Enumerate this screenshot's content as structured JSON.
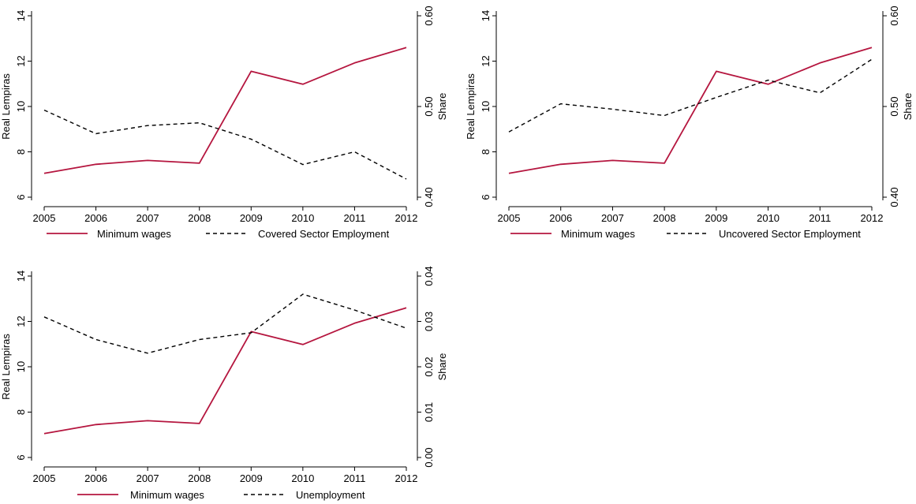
{
  "chart_data": [
    {
      "type": "line",
      "x": [
        2005,
        2006,
        2007,
        2008,
        2009,
        2010,
        2011,
        2012
      ],
      "ylabel": "Real Lempiras",
      "y2label": "Share",
      "ylim": [
        6,
        14
      ],
      "yticks": [
        6,
        8,
        10,
        12,
        14
      ],
      "y2lim": [
        0.4,
        0.6
      ],
      "y2ticks": [
        "0.40",
        "0.50",
        "0.60"
      ],
      "grid": false,
      "legend_placement": "bottom",
      "series": [
        {
          "name": "Minimum wages",
          "axis": "left",
          "style": "solid",
          "color": "#b5163f",
          "values": [
            7.05,
            7.45,
            7.62,
            7.5,
            11.55,
            10.98,
            11.92,
            12.6
          ]
        },
        {
          "name": "Covered Sector Employment",
          "axis": "right",
          "style": "dashed",
          "color": "#000000",
          "values": [
            0.496,
            0.47,
            0.479,
            0.482,
            0.464,
            0.436,
            0.45,
            0.42
          ]
        }
      ]
    },
    {
      "type": "line",
      "x": [
        2005,
        2006,
        2007,
        2008,
        2009,
        2010,
        2011,
        2012
      ],
      "ylabel": "Real Lempiras",
      "y2label": "Share",
      "ylim": [
        6,
        14
      ],
      "yticks": [
        6,
        8,
        10,
        12,
        14
      ],
      "y2lim": [
        0.4,
        0.6
      ],
      "y2ticks": [
        "0.40",
        "0.50",
        "0.60"
      ],
      "grid": false,
      "legend_placement": "bottom",
      "series": [
        {
          "name": "Minimum wages",
          "axis": "left",
          "style": "solid",
          "color": "#b5163f",
          "values": [
            7.05,
            7.45,
            7.62,
            7.5,
            11.55,
            10.98,
            11.92,
            12.6
          ]
        },
        {
          "name": "Uncovered Sector Employment",
          "axis": "right",
          "style": "dashed",
          "color": "#000000",
          "values": [
            0.472,
            0.503,
            0.497,
            0.49,
            0.51,
            0.529,
            0.515,
            0.552
          ]
        }
      ]
    },
    {
      "type": "line",
      "x": [
        2005,
        2006,
        2007,
        2008,
        2009,
        2010,
        2011,
        2012
      ],
      "ylabel": "Real Lempiras",
      "y2label": "Share",
      "ylim": [
        6,
        14
      ],
      "yticks": [
        6,
        8,
        10,
        12,
        14
      ],
      "y2lim": [
        0,
        0.04
      ],
      "y2ticks": [
        "0.00",
        "0.01",
        "0.02",
        "0.03",
        "0.04"
      ],
      "grid": false,
      "legend_placement": "bottom",
      "series": [
        {
          "name": "Minimum wages",
          "axis": "left",
          "style": "solid",
          "color": "#b5163f",
          "values": [
            7.05,
            7.45,
            7.62,
            7.5,
            11.55,
            10.98,
            11.92,
            12.6
          ]
        },
        {
          "name": "Unemployment",
          "axis": "right",
          "style": "dashed",
          "color": "#000000",
          "values": [
            0.031,
            0.026,
            0.023,
            0.026,
            0.0275,
            0.036,
            0.0325,
            0.0285
          ]
        }
      ]
    }
  ]
}
